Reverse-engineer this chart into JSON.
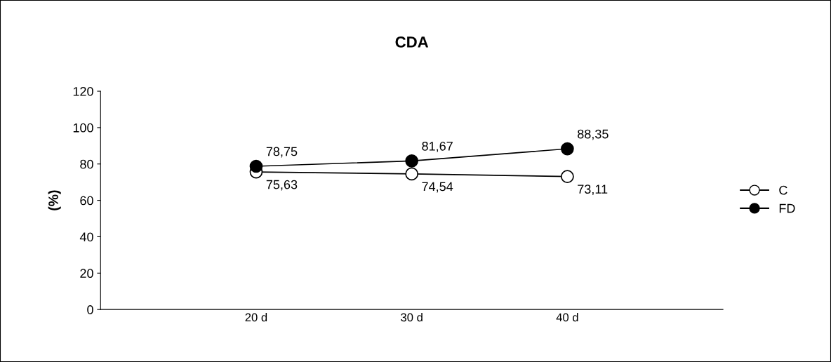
{
  "chart_data": {
    "type": "line",
    "title": "CDA",
    "ylabel": "(%)",
    "categories": [
      "20 d",
      "30 d",
      "40 d"
    ],
    "series": [
      {
        "name": "C",
        "color": "#000000",
        "colors": [
          "#ffffff",
          "#ffffff",
          "#ffffff"
        ],
        "values": [
          75.63,
          74.54,
          73.11
        ],
        "value_labels": [
          "75,63",
          "74,54",
          "73,11"
        ]
      },
      {
        "name": "FD",
        "color": "#000000",
        "colors": [
          "#000000",
          "#000000",
          "#000000"
        ],
        "values": [
          78.75,
          81.67,
          88.35
        ],
        "value_labels": [
          "78,75",
          "81,67",
          "88,35"
        ]
      }
    ],
    "ylim": [
      0,
      120
    ],
    "yticks": [
      0,
      20,
      40,
      60,
      80,
      100,
      120
    ],
    "grid": false,
    "legend": "right",
    "marker": "circle",
    "line_style": "solid"
  }
}
